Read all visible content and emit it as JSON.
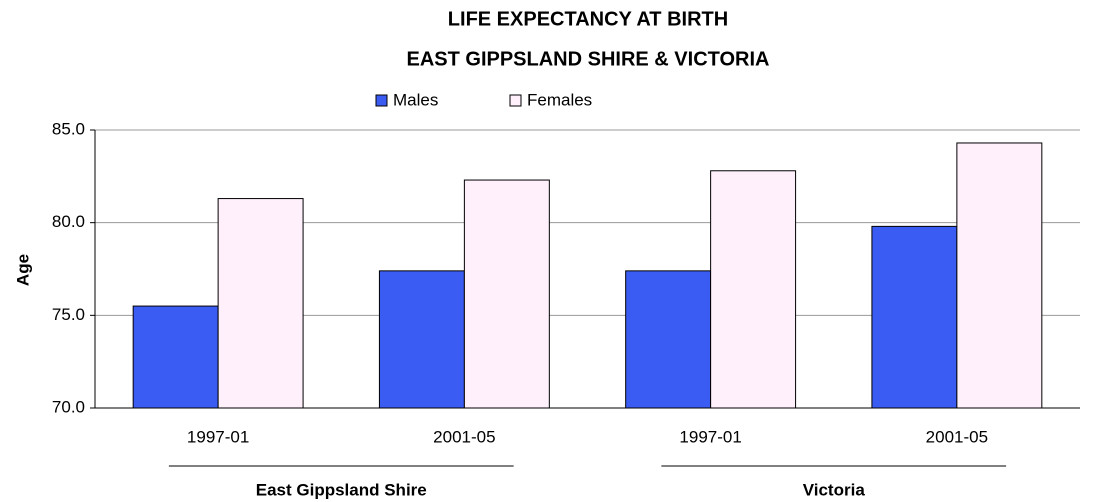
{
  "chart_data": {
    "type": "bar",
    "title": "LIFE EXPECTANCY AT BIRTH",
    "subtitle": "EAST GIPPSLAND SHIRE & VICTORIA",
    "y_label": "Age",
    "categories": [
      "1997-01",
      "2001-05",
      "1997-01",
      "2001-05"
    ],
    "groups": [
      "East Gippsland Shire",
      "Victoria"
    ],
    "series": [
      {
        "name": "Males",
        "color": "#3b5cf2",
        "values": [
          75.5,
          77.4,
          77.4,
          79.8
        ]
      },
      {
        "name": "Females",
        "color": "#fff0fc",
        "values": [
          81.3,
          82.3,
          82.8,
          84.3
        ]
      }
    ],
    "ylim": [
      70,
      85
    ],
    "yticks": [
      {
        "value": 70,
        "label": "70.0"
      },
      {
        "value": 75,
        "label": "75.0"
      },
      {
        "value": 80,
        "label": "80.0"
      },
      {
        "value": 85,
        "label": "85.0"
      }
    ],
    "grid": true,
    "legend": "top"
  }
}
